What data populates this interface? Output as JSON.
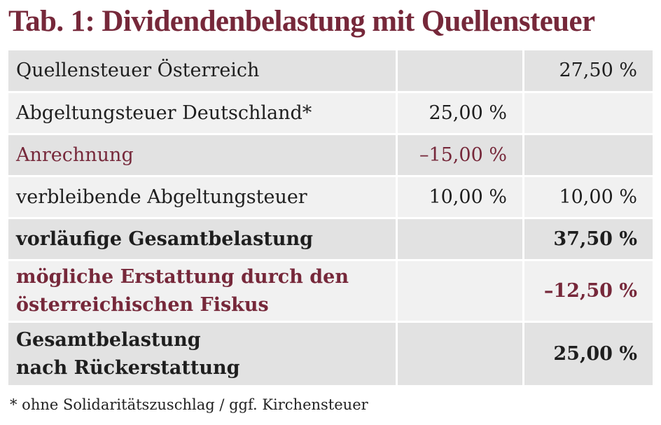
{
  "header": {
    "title": "Tab. 1: Dividendenbelastung mit Quellensteuer"
  },
  "table": {
    "rows": [
      {
        "label": "Quellensteuer Österreich",
        "col2": "27,50 %"
      },
      {
        "label": "Abgeltungsteuer Deutschland*",
        "col1": "25,00 %"
      },
      {
        "label": "Anrechnung",
        "col1": "–15,00 %"
      },
      {
        "label": "verbleibende Abgeltungsteuer",
        "col1": "10,00 %",
        "col2": "10,00 %"
      },
      {
        "label": "vorläufige Gesamtbelastung",
        "col2": "37,50 %"
      },
      {
        "label": "mögliche Erstattung durch den\nösterreichischen Fiskus",
        "col2": "–12,50 %"
      },
      {
        "label": "Gesamtbelastung\nnach Rückerstattung",
        "col2": "25,00 %"
      }
    ]
  },
  "footnote": "* ohne Solidaritätszuschlag / ggf. Kirchensteuer"
}
